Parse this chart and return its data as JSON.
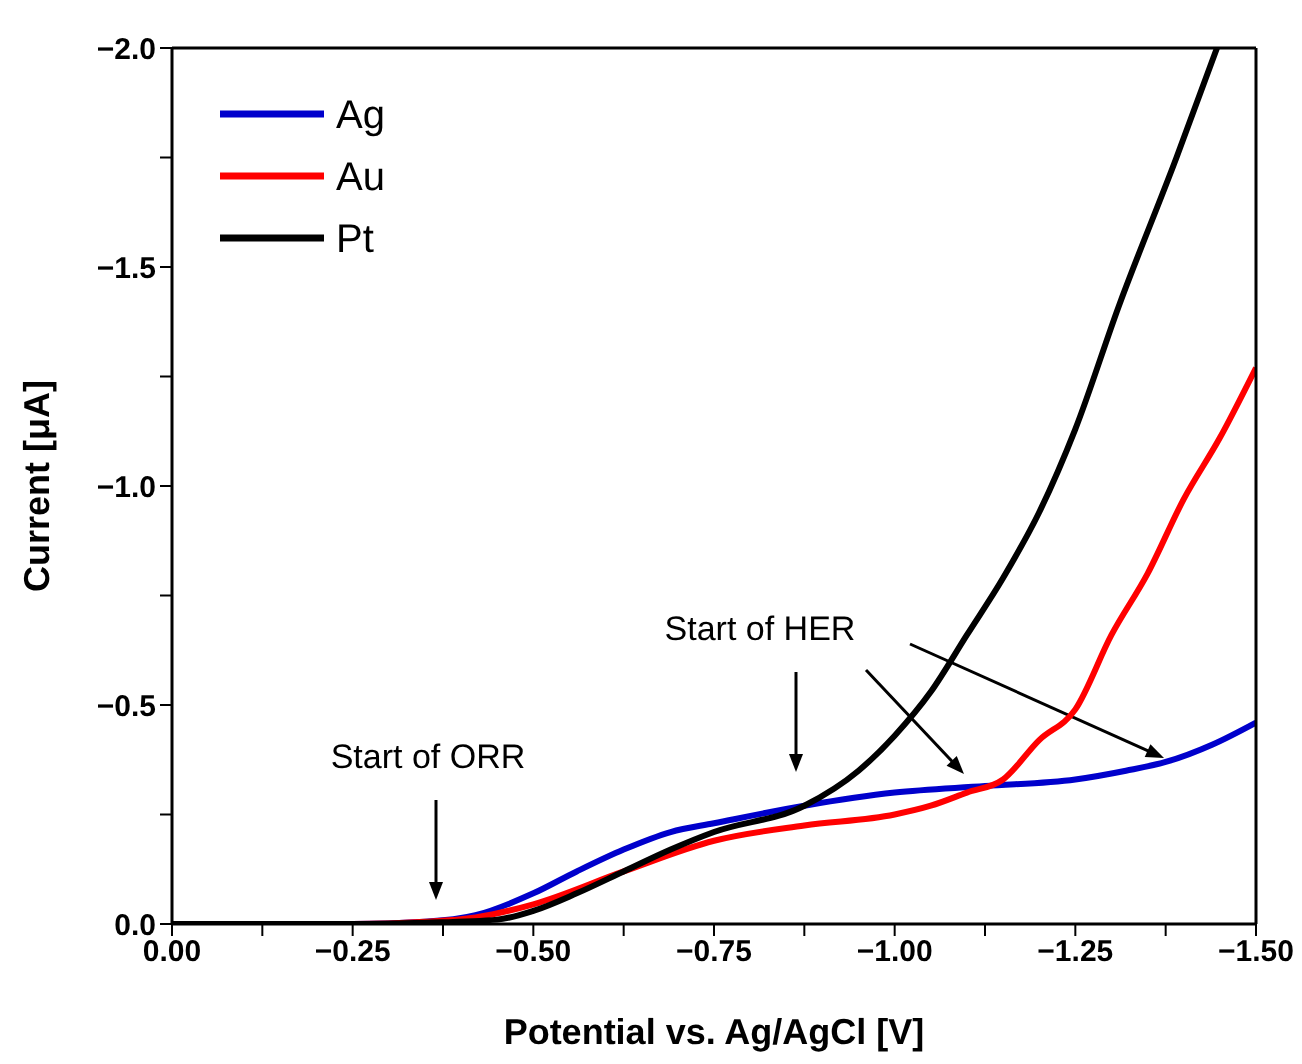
{
  "chart_data": {
    "type": "line",
    "xlabel": "Potential vs. Ag/AgCl [V]",
    "ylabel": "Current [μA]",
    "xlim": [
      0,
      -1.5
    ],
    "ylim": [
      0,
      -2.0
    ],
    "xticks": [
      {
        "value": 0,
        "label": "0.00"
      },
      {
        "value": -0.125,
        "label": null
      },
      {
        "value": -0.25,
        "label": "−0.25"
      },
      {
        "value": -0.375,
        "label": null
      },
      {
        "value": -0.5,
        "label": "−0.50"
      },
      {
        "value": -0.625,
        "label": null
      },
      {
        "value": -0.75,
        "label": "−0.75"
      },
      {
        "value": -0.875,
        "label": null
      },
      {
        "value": -1.0,
        "label": "−1.00"
      },
      {
        "value": -1.125,
        "label": null
      },
      {
        "value": -1.25,
        "label": "−1.25"
      },
      {
        "value": -1.375,
        "label": null
      },
      {
        "value": -1.5,
        "label": "−1.50"
      }
    ],
    "yticks": [
      {
        "value": 0,
        "label": "0.0"
      },
      {
        "value": -0.25,
        "label": null
      },
      {
        "value": -0.5,
        "label": "−0.5"
      },
      {
        "value": -0.75,
        "label": null
      },
      {
        "value": -1.0,
        "label": "−1.0"
      },
      {
        "value": -1.25,
        "label": null
      },
      {
        "value": -1.5,
        "label": "−1.5"
      },
      {
        "value": -1.75,
        "label": null
      },
      {
        "value": -2.0,
        "label": "−2.0"
      }
    ],
    "grid": false,
    "legend": "top left",
    "marker": "none",
    "line_style": "solid",
    "series": [
      {
        "name": "Ag",
        "color": "#0000cc",
        "x": [
          0,
          -0.25,
          -0.35,
          -0.42,
          -0.5,
          -0.56,
          -0.625,
          -0.69,
          -0.75,
          -0.875,
          -1.0,
          -1.125,
          -1.25,
          -1.32,
          -1.375,
          -1.44,
          -1.5
        ],
        "values": [
          0,
          0,
          -0.005,
          -0.02,
          -0.07,
          -0.12,
          -0.17,
          -0.21,
          -0.23,
          -0.27,
          -0.3,
          -0.315,
          -0.33,
          -0.35,
          -0.37,
          -0.41,
          -0.46
        ]
      },
      {
        "name": "Au",
        "color": "#ff0000",
        "x": [
          0,
          -0.25,
          -0.35,
          -0.42,
          -0.5,
          -0.625,
          -0.75,
          -0.875,
          -1.0,
          -1.05,
          -1.1,
          -1.15,
          -1.2,
          -1.25,
          -1.3,
          -1.35,
          -1.4,
          -1.45,
          -1.5
        ],
        "values": [
          0,
          0,
          -0.005,
          -0.015,
          -0.045,
          -0.12,
          -0.19,
          -0.225,
          -0.25,
          -0.27,
          -0.3,
          -0.33,
          -0.42,
          -0.49,
          -0.66,
          -0.8,
          -0.97,
          -1.11,
          -1.27
        ]
      },
      {
        "name": "Pt",
        "color": "#000000",
        "x": [
          0,
          -0.25,
          -0.35,
          -0.45,
          -0.5,
          -0.56,
          -0.625,
          -0.69,
          -0.75,
          -0.875,
          -0.95,
          -1.0,
          -1.05,
          -1.1,
          -1.15,
          -1.2,
          -1.25,
          -1.31,
          -1.39,
          -1.446
        ],
        "values": [
          0,
          0,
          -0.003,
          -0.01,
          -0.03,
          -0.07,
          -0.12,
          -0.17,
          -0.21,
          -0.27,
          -0.35,
          -0.43,
          -0.53,
          -0.66,
          -0.79,
          -0.94,
          -1.13,
          -1.41,
          -1.75,
          -2.0
        ]
      }
    ],
    "annotations": [
      "Start of ORR",
      "Start of HER"
    ]
  }
}
